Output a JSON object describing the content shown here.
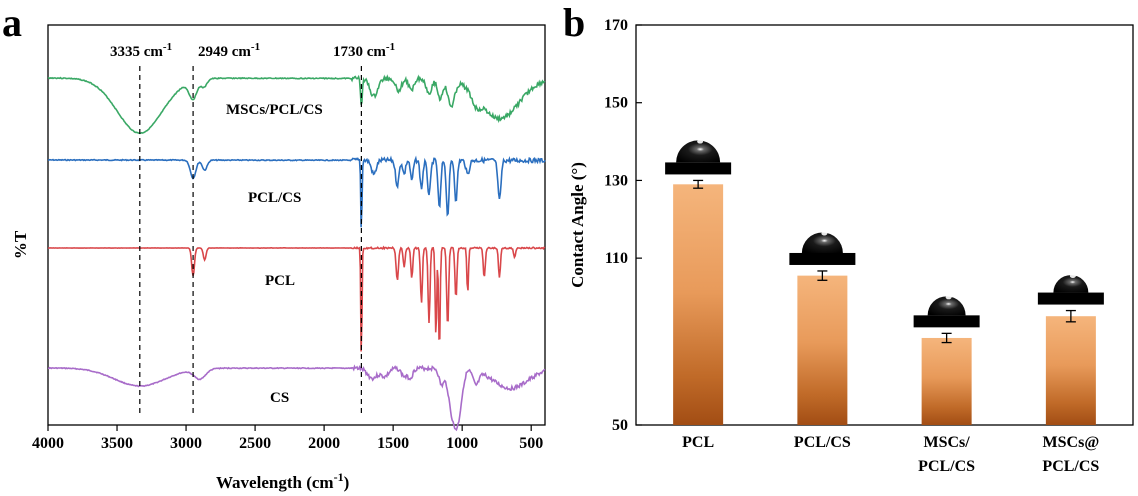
{
  "chart_data": [
    {
      "panel": "a",
      "type": "line",
      "xlabel": "Wavelength (cm",
      "xlabel_sup": "-1",
      "xlabel_end": ")",
      "ylabel": "%T",
      "xlim": [
        4000,
        400
      ],
      "xticks": [
        "4000",
        "3500",
        "3000",
        "2500",
        "2000",
        "1500",
        "1000",
        "500"
      ],
      "annotations": [
        {
          "label": "3335 cm",
          "sup": "-1",
          "x": 3335
        },
        {
          "label": "2949 cm",
          "sup": "-1",
          "x": 2949
        },
        {
          "label": "1730 cm",
          "sup": "-1",
          "x": 1730
        }
      ],
      "series": [
        {
          "name": "MSCs/PCL/CS",
          "color": "#3aa865"
        },
        {
          "name": "PCL/CS",
          "color": "#2b6fbf"
        },
        {
          "name": "PCL",
          "color": "#d9474a"
        },
        {
          "name": "CS",
          "color": "#a86cc9"
        }
      ]
    },
    {
      "panel": "b",
      "type": "bar",
      "ylabel": "Contact Angle (°)",
      "ylim": [
        50,
        170
      ],
      "yticks": [
        "50",
        "110",
        "130",
        "150",
        "170"
      ],
      "categories": [
        {
          "line1": "PCL",
          "line2": ""
        },
        {
          "line1": "PCL/CS",
          "line2": ""
        },
        {
          "line1": "MSCs/",
          "line2": "PCL/CS"
        },
        {
          "line1": "MSCs@",
          "line2": "PCL/CS"
        }
      ],
      "values": [
        129,
        105.5,
        84,
        92.5
      ],
      "errors": [
        1,
        1.2,
        1.8,
        2.2
      ],
      "bar_color_top": "#f2b27a",
      "bar_color_bottom": "#a24d14"
    }
  ]
}
